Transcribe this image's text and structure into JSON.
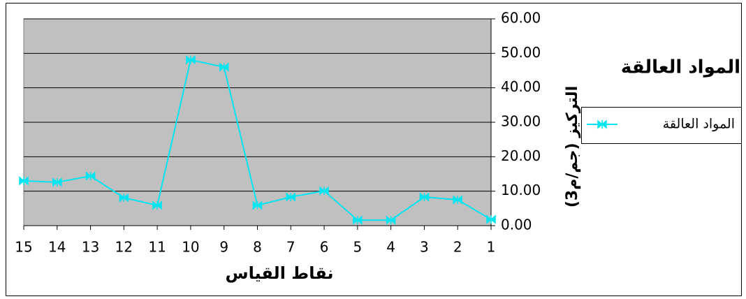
{
  "chart_data": {
    "type": "line",
    "title": "المواد العالقة",
    "x_label": "نقاط القياس",
    "y_label": "التركيز (جم/م3)",
    "categories": [
      "1",
      "2",
      "3",
      "4",
      "5",
      "6",
      "7",
      "8",
      "9",
      "10",
      "11",
      "12",
      "13",
      "14",
      "15"
    ],
    "x_reversed": true,
    "y_axis_side": "right",
    "series": [
      {
        "name": "المواد العالقة",
        "color": "#00e5f0",
        "values": [
          1.8,
          7.5,
          8.3,
          1.6,
          1.6,
          10.1,
          8.3,
          5.9,
          46.0,
          48.1,
          5.9,
          8.1,
          14.4,
          12.6,
          13.0
        ]
      }
    ],
    "ylim": [
      0,
      60
    ],
    "yticks": [
      {
        "value": 0,
        "label": "0.00"
      },
      {
        "value": 10,
        "label": "10.00"
      },
      {
        "value": 20,
        "label": "20.00"
      },
      {
        "value": 30,
        "label": "30.00"
      },
      {
        "value": 40,
        "label": "40.00"
      },
      {
        "value": 50,
        "label": "50.00"
      },
      {
        "value": 60,
        "label": "60.00"
      }
    ],
    "grid": true,
    "plot_background": "#c0c0c0",
    "legend": "right"
  }
}
